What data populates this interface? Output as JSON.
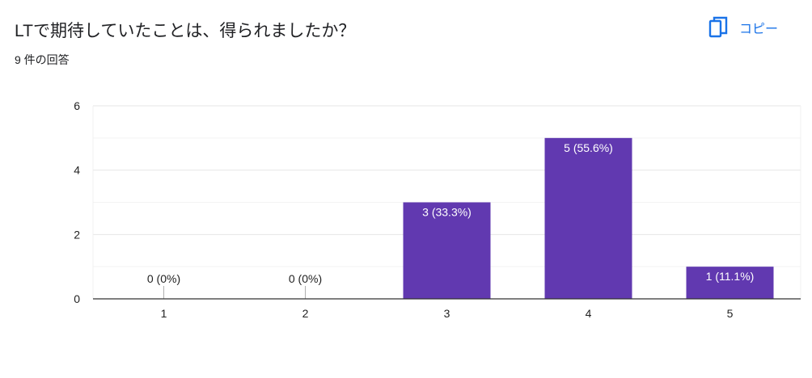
{
  "header": {
    "title": "LTで期待していたことは、得られましたか？",
    "response_count": "9 件の回答",
    "copy_label": "コピー",
    "copy_icon": "copy-icon"
  },
  "colors": {
    "bar": "#6139b0",
    "accent": "#1a73e8"
  },
  "chart_data": {
    "type": "bar",
    "title": "",
    "xlabel": "",
    "ylabel": "",
    "categories": [
      "1",
      "2",
      "3",
      "4",
      "5"
    ],
    "values": [
      0,
      0,
      3,
      5,
      1
    ],
    "data_labels": [
      "0 (0%)",
      "0 (0%)",
      "3 (33.3%)",
      "5 (55.6%)",
      "1 (11.1%)"
    ],
    "ylim": [
      0,
      6
    ],
    "yticks": [
      0,
      2,
      4,
      6
    ],
    "grid": true,
    "legend": "none"
  }
}
